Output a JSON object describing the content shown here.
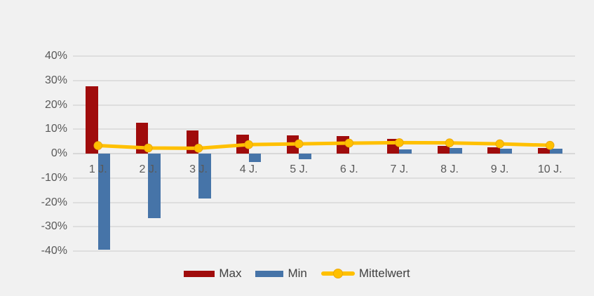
{
  "chart_data": {
    "type": "bar",
    "subtype": "combo-bar-line",
    "categories": [
      "1 J.",
      "2 J.",
      "3 J.",
      "4 J.",
      "5 J.",
      "6 J.",
      "7 J.",
      "8 J.",
      "9 J.",
      "10 J."
    ],
    "series": [
      {
        "name": "Max",
        "type": "bar",
        "color": "#A00C0C",
        "values": [
          27.6,
          12.6,
          9.6,
          7.7,
          7.4,
          7.2,
          6.0,
          3.3,
          2.7,
          2.2
        ]
      },
      {
        "name": "Min",
        "type": "bar",
        "color": "#4674A8",
        "values": [
          -39.4,
          -26.4,
          -18.4,
          -3.4,
          -2.4,
          0,
          1.6,
          2.2,
          2.0,
          1.9
        ]
      },
      {
        "name": "Mittelwert",
        "type": "line",
        "color": "#FFC000",
        "marker_color": "#FFC000",
        "marker_edge_color": "#ECA80C",
        "values": [
          3.3,
          2.3,
          2.2,
          3.7,
          4.0,
          4.3,
          4.5,
          4.4,
          4.0,
          3.4
        ]
      }
    ],
    "title": "",
    "xlabel": "",
    "ylabel": "",
    "ylim": [
      -40,
      40
    ],
    "ytick_values": [
      40,
      30,
      20,
      10,
      0,
      -10,
      -20,
      -30,
      -40
    ],
    "ytick_suffix": "%",
    "grid": true,
    "legend_position": "bottom",
    "background_color": "#F1F1F1",
    "gridline_color": "#DEDEDE",
    "axis_text_color": "#595959",
    "legend_text_color": "#404040"
  }
}
